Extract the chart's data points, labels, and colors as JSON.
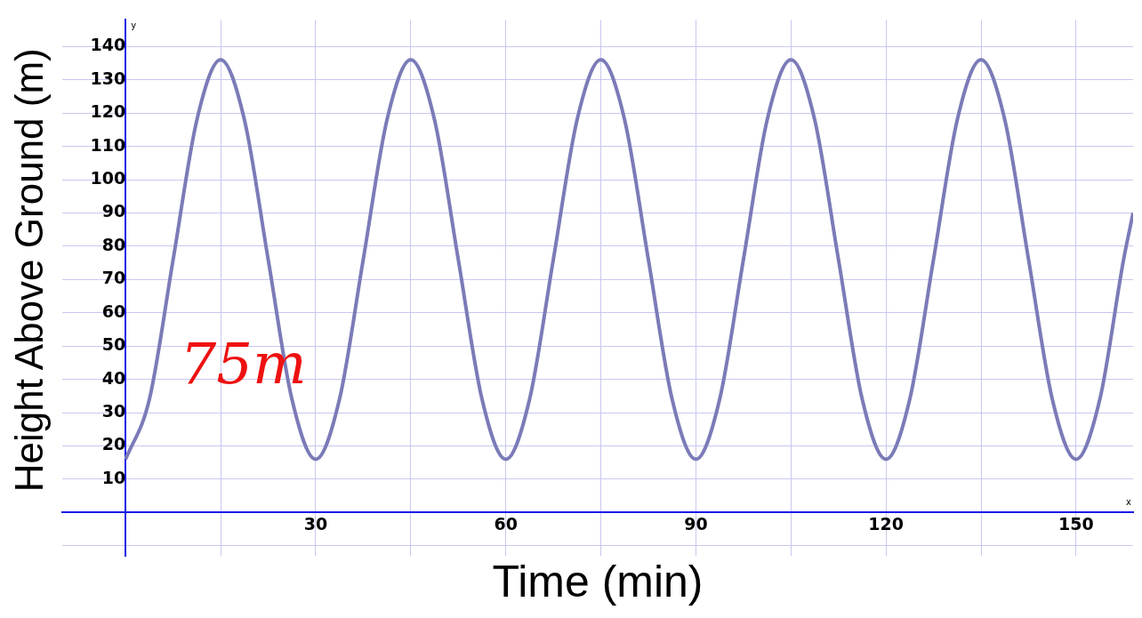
{
  "chart_data": {
    "type": "line",
    "xlabel": "Time (min)",
    "ylabel": "Height Above Ground (m)",
    "x": [
      0,
      3.75,
      7.5,
      11.25,
      15,
      18.75,
      22.5,
      26.25,
      30,
      33.75,
      37.5,
      41.25,
      45,
      48.75,
      52.5,
      56.25,
      60,
      63.75,
      67.5,
      71.25,
      75,
      78.75,
      82.5,
      86.25,
      90,
      93.75,
      97.5,
      101.25,
      105,
      108.75,
      112.5,
      116.25,
      120,
      123.75,
      127.5,
      131.25,
      135,
      138.75,
      142.5,
      146.25,
      150,
      153.75,
      157.5,
      159
    ],
    "series": [
      {
        "color": "#7b7bb8",
        "values": [
          16,
          34,
          76,
          118,
          136,
          118,
          76,
          34,
          16,
          34,
          76,
          118,
          136,
          118,
          76,
          34,
          16,
          34,
          76,
          118,
          136,
          118,
          76,
          34,
          16,
          34,
          76,
          118,
          136,
          118,
          76,
          34,
          16,
          34,
          76,
          118,
          136,
          118,
          76,
          34,
          16,
          34,
          76,
          90
        ]
      }
    ],
    "xlim": [
      -10,
      159
    ],
    "ylim": [
      -13,
      148
    ],
    "xticks": [
      {
        "value": 15,
        "label": null
      },
      30,
      {
        "value": 45,
        "label": null
      },
      60,
      {
        "value": 75,
        "label": null
      },
      90,
      {
        "value": 105,
        "label": null
      },
      120,
      {
        "value": 135,
        "label": null
      },
      150
    ],
    "yticks": [
      {
        "value": -10,
        "label": null
      },
      {
        "value": 0,
        "label": null
      },
      10,
      20,
      30,
      40,
      50,
      60,
      70,
      80,
      90,
      100,
      110,
      120,
      130,
      140
    ],
    "grid": true,
    "marker": "none",
    "line_style": "solid",
    "legend": false,
    "annotations": [
      "75m",
      "y",
      "x"
    ]
  }
}
